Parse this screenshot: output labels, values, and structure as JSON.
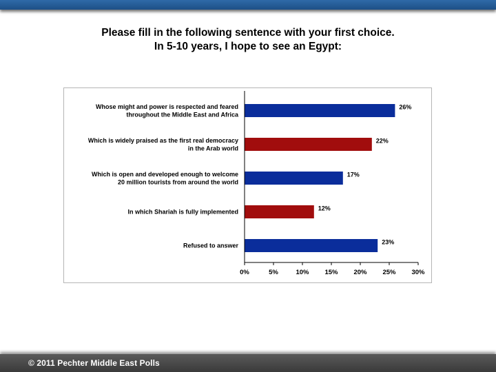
{
  "header": {
    "title_line1": "Please fill in the following sentence with your first choice.",
    "title_line2": "In 5-10 years, I hope to see an Egypt:"
  },
  "footer": {
    "text": "© 2011  Pechter  Middle East Polls"
  },
  "chart_data": {
    "type": "bar",
    "orientation": "horizontal",
    "categories": [
      [
        "Whose might and power is respected and feared",
        "throughout the Middle East and Africa"
      ],
      [
        "Which is widely praised as the first real democracy",
        "in the Arab world"
      ],
      [
        "Which is open and developed enough to welcome",
        "20 million tourists from around the world"
      ],
      [
        "In which Shariah is fully implemented"
      ],
      [
        "Refused to answer"
      ]
    ],
    "values": [
      26,
      22,
      17,
      12,
      23
    ],
    "data_labels": [
      "26%",
      "22%",
      "17%",
      "12%",
      "23%"
    ],
    "bar_colors": [
      "#0a2d9b",
      "#a10d0d",
      "#0a2d9b",
      "#a10d0d",
      "#0a2d9b"
    ],
    "xlim": [
      0,
      30
    ],
    "x_ticks": [
      "0%",
      "5%",
      "10%",
      "15%",
      "20%",
      "25%",
      "30%"
    ],
    "grid": false,
    "legend": "none"
  }
}
